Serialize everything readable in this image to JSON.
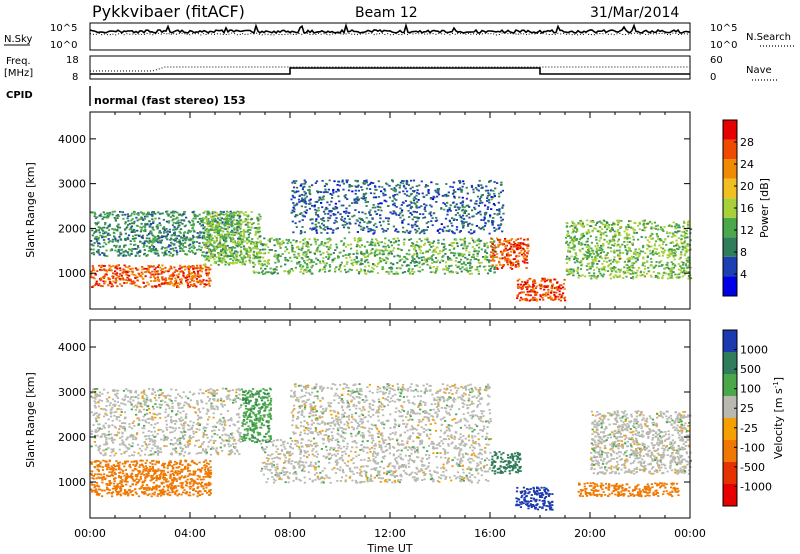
{
  "header": {
    "station": "Pykkvibaer (fitACF)",
    "beam": "Beam 12",
    "date": "31/Mar/2014"
  },
  "top_panels": {
    "nsky_label": "N.Sky",
    "nsky_ticks": [
      "10^5",
      "10^0"
    ],
    "nsearch_label": "N.Search",
    "nsearch_ticks": [
      "10^5",
      "10^0"
    ],
    "freq_label": "Freq.",
    "freq_unit": "[MHz]",
    "freq_ticks": [
      "18",
      "8"
    ],
    "nave_label": "Nave",
    "nave_ticks": [
      "60",
      "0"
    ],
    "cpid_label": "CPID",
    "cpid_text": "normal (fast stereo) 153"
  },
  "x_axis": {
    "label": "Time UT",
    "ticks": [
      "00:00",
      "04:00",
      "08:00",
      "12:00",
      "16:00",
      "20:00",
      "00:00"
    ]
  },
  "colors": {
    "power_scale": [
      "#0000e6",
      "#1e3fb4",
      "#2f7d5a",
      "#4aa84a",
      "#a8d038",
      "#f0c020",
      "#f08a00",
      "#f04a00",
      "#e60000"
    ],
    "velocity_scale": [
      "#1c3ab0",
      "#2f7d5a",
      "#4aa84a",
      "#b9b9b2",
      "#f5a000",
      "#f07800",
      "#e63200",
      "#e60000"
    ],
    "background_scatter": "#c0c0bc"
  },
  "chart_data": [
    {
      "type": "heatmap",
      "title": "",
      "xlabel": "",
      "ylabel": "Slant Range [km]",
      "ylim": [
        200,
        4600
      ],
      "y_ticks": [
        1000,
        2000,
        3000,
        4000
      ],
      "colorbar": {
        "label": "Power [dB]",
        "range": [
          0,
          32
        ],
        "ticks": [
          4,
          8,
          12,
          16,
          20,
          24,
          28
        ]
      },
      "bands": [
        {
          "time_start": 0.0,
          "time_end": 4.8,
          "range_low": 700,
          "range_high": 1200,
          "power": 26
        },
        {
          "time_start": 0.0,
          "time_end": 6.0,
          "range_low": 1400,
          "range_high": 2400,
          "power": 10
        },
        {
          "time_start": 4.5,
          "time_end": 6.8,
          "range_low": 1200,
          "range_high": 2400,
          "power": 14
        },
        {
          "time_start": 6.5,
          "time_end": 16.2,
          "range_low": 1000,
          "range_high": 1800,
          "power": 13
        },
        {
          "time_start": 8.0,
          "time_end": 16.5,
          "range_low": 1900,
          "range_high": 3100,
          "power": 7
        },
        {
          "time_start": 16.0,
          "time_end": 17.5,
          "range_low": 1100,
          "range_high": 1800,
          "power": 27
        },
        {
          "time_start": 17.0,
          "time_end": 19.0,
          "range_low": 400,
          "range_high": 900,
          "power": 27
        },
        {
          "time_start": 19.0,
          "time_end": 24.0,
          "range_low": 900,
          "range_high": 2200,
          "power": 14
        }
      ]
    },
    {
      "type": "heatmap",
      "title": "",
      "xlabel": "Time UT",
      "ylabel": "Slant Range [km]",
      "ylim": [
        200,
        4600
      ],
      "y_ticks": [
        1000,
        2000,
        3000,
        4000
      ],
      "colorbar": {
        "label": "Velocity [m s^-1]",
        "tick_labels": [
          "1000",
          "500",
          "100",
          "25",
          "-25",
          "-100",
          "-500",
          "-1000"
        ]
      },
      "bands": [
        {
          "time_start": 0.0,
          "time_end": 4.8,
          "range_low": 700,
          "range_high": 1500,
          "velocity": -200
        },
        {
          "time_start": 0.0,
          "time_end": 6.0,
          "range_low": 1600,
          "range_high": 3100,
          "velocity": 0
        },
        {
          "time_start": 6.0,
          "time_end": 7.2,
          "range_low": 1900,
          "range_high": 3100,
          "velocity": 80
        },
        {
          "time_start": 6.8,
          "time_end": 16.0,
          "range_low": 1000,
          "range_high": 2000,
          "velocity": 0
        },
        {
          "time_start": 8.0,
          "time_end": 16.0,
          "range_low": 2000,
          "range_high": 3200,
          "velocity": 0
        },
        {
          "time_start": 16.0,
          "time_end": 17.2,
          "range_low": 1200,
          "range_high": 1700,
          "velocity": 150
        },
        {
          "time_start": 17.0,
          "time_end": 18.5,
          "range_low": 400,
          "range_high": 900,
          "velocity": 600
        },
        {
          "time_start": 19.5,
          "time_end": 23.5,
          "range_low": 700,
          "range_high": 1000,
          "velocity": -150
        },
        {
          "time_start": 20.0,
          "time_end": 24.0,
          "range_low": 1200,
          "range_high": 2600,
          "velocity": 0
        }
      ]
    }
  ]
}
